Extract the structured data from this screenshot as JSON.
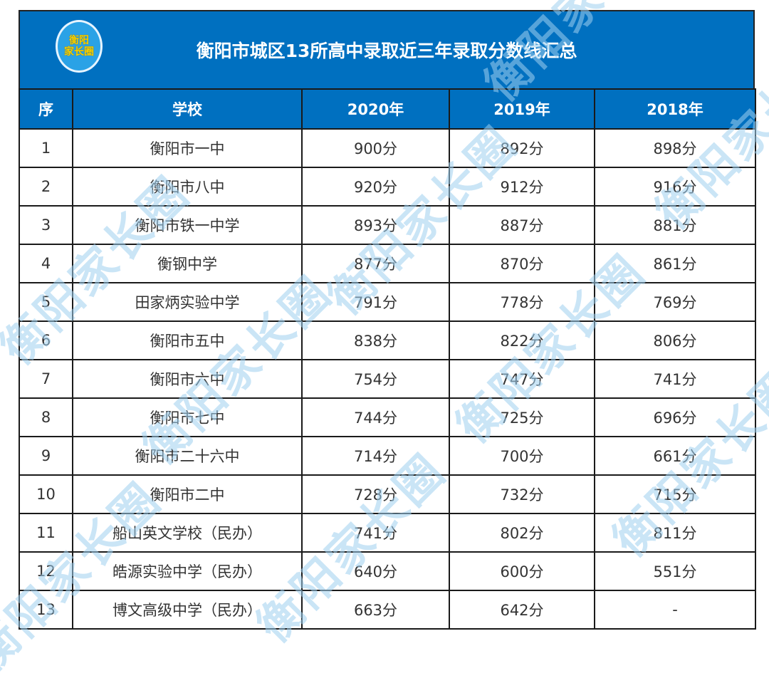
{
  "header": {
    "logo_text_line1": "衡阳",
    "logo_text_line2": "家长圈",
    "title": "衡阳市城区13所高中录取近三年录取分数线汇总"
  },
  "watermark_text": "衡阳家长圈",
  "colors": {
    "header_bg": "#0070c0",
    "header_text": "#ffffff",
    "border": "#1a1a1a",
    "watermark": "#9fd0f0",
    "logo_text": "#f5d000"
  },
  "table": {
    "columns": [
      "序",
      "学校",
      "2020年",
      "2019年",
      "2018年"
    ],
    "rows": [
      {
        "no": "1",
        "school": "衡阳市一中",
        "y2020": "900分",
        "y2019": "892分",
        "y2018": "898分"
      },
      {
        "no": "2",
        "school": "衡阳市八中",
        "y2020": "920分",
        "y2019": "912分",
        "y2018": "916分"
      },
      {
        "no": "3",
        "school": "衡阳市铁一中学",
        "y2020": "893分",
        "y2019": "887分",
        "y2018": "881分"
      },
      {
        "no": "4",
        "school": "衡钢中学",
        "y2020": "877分",
        "y2019": "870分",
        "y2018": "861分"
      },
      {
        "no": "5",
        "school": "田家炳实验中学",
        "y2020": "791分",
        "y2019": "778分",
        "y2018": "769分"
      },
      {
        "no": "6",
        "school": "衡阳市五中",
        "y2020": "838分",
        "y2019": "822分",
        "y2018": "806分"
      },
      {
        "no": "7",
        "school": "衡阳市六中",
        "y2020": "754分",
        "y2019": "747分",
        "y2018": "741分"
      },
      {
        "no": "8",
        "school": "衡阳市七中",
        "y2020": "744分",
        "y2019": "725分",
        "y2018": "696分"
      },
      {
        "no": "9",
        "school": "衡阳市二十六中",
        "y2020": "714分",
        "y2019": "700分",
        "y2018": "661分"
      },
      {
        "no": "10",
        "school": "衡阳市二中",
        "y2020": "728分",
        "y2019": "732分",
        "y2018": "715分"
      },
      {
        "no": "11",
        "school": "船山英文学校（民办）",
        "y2020": "741分",
        "y2019": "802分",
        "y2018": "811分"
      },
      {
        "no": "12",
        "school": "皓源实验中学（民办）",
        "y2020": "640分",
        "y2019": "600分",
        "y2018": "551分"
      },
      {
        "no": "13",
        "school": "博文高级中学（民办）",
        "y2020": "663分",
        "y2019": "642分",
        "y2018": "-"
      }
    ]
  }
}
